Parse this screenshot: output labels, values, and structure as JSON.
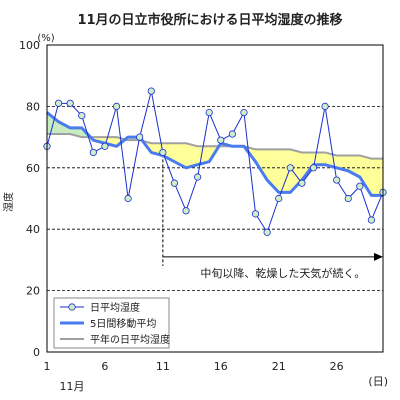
{
  "chart_data": {
    "type": "line",
    "title": "11月の日立市役所における日平均湿度の推移",
    "y_unit": "(%)",
    "ylabel": "湿度",
    "x_unit": "(日)",
    "x_month_label": "11月",
    "xlim": [
      1,
      30
    ],
    "ylim": [
      0,
      100
    ],
    "x_ticks": [
      1,
      6,
      11,
      16,
      21,
      26
    ],
    "y_ticks": [
      0,
      20,
      40,
      60,
      80,
      100
    ],
    "grid": "horizontal dashed",
    "annotation": "中旬以降、乾燥した天気が続く。",
    "annotation_arrow_x": [
      11,
      30
    ],
    "annotation_arrow_y": 31,
    "annotation_divider_x": 11,
    "legend_position": "bottom-left",
    "x": [
      1,
      2,
      3,
      4,
      5,
      6,
      7,
      8,
      9,
      10,
      11,
      12,
      13,
      14,
      15,
      16,
      17,
      18,
      19,
      20,
      21,
      22,
      23,
      24,
      25,
      26,
      27,
      28,
      29,
      30
    ],
    "series": [
      {
        "name": "日平均湿度",
        "color": "#1a2fd0",
        "marker": "circle",
        "marker_fill": "#cfeec8",
        "values": [
          67,
          81,
          81,
          77,
          65,
          67,
          80,
          50,
          70,
          85,
          65,
          55,
          46,
          57,
          78,
          69,
          71,
          78,
          45,
          39,
          50,
          60,
          55,
          60,
          80,
          56,
          50,
          54,
          43,
          52
        ]
      },
      {
        "name": "5日間移動平均",
        "color": "#4a7cf0",
        "values": [
          78,
          75,
          73,
          73,
          69,
          68,
          67,
          70,
          70,
          65,
          64,
          62,
          60,
          61,
          62,
          68,
          67,
          67,
          62,
          56,
          52,
          52,
          56,
          61,
          61,
          60,
          59,
          57,
          51,
          51
        ]
      },
      {
        "name": "平年の日平均湿度",
        "color": "#a0a0a0",
        "values": [
          71,
          71,
          71,
          70,
          70,
          70,
          70,
          69,
          69,
          68,
          68,
          68,
          68,
          67,
          67,
          67,
          67,
          67,
          66,
          66,
          66,
          66,
          65,
          65,
          65,
          64,
          64,
          64,
          63,
          63
        ]
      }
    ],
    "fill_colors": {
      "above_normal": "#c8ecc2",
      "below_normal": "#ffff99"
    }
  }
}
